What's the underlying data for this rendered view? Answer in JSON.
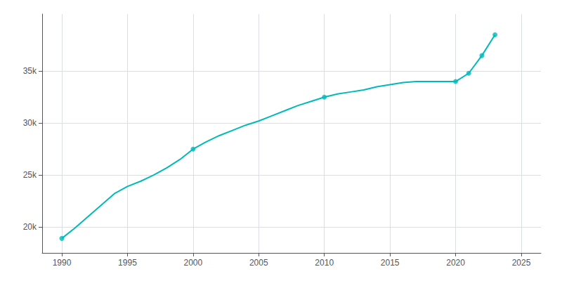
{
  "chart_data": {
    "type": "line",
    "series": [
      {
        "type": "line",
        "color": "#00BABA",
        "marker": "none",
        "x": [
          1990,
          1991,
          1992,
          1993,
          1994,
          1995,
          1996,
          1997,
          1998,
          1999,
          2000,
          2001,
          2002,
          2003,
          2004,
          2005,
          2006,
          2007,
          2008,
          2009,
          2010,
          2011,
          2012,
          2013,
          2014,
          2015,
          2016,
          2017,
          2018,
          2019,
          2020,
          2021,
          2022,
          2023
        ],
        "values": [
          18896,
          19900,
          21000,
          22100,
          23200,
          23900,
          24400,
          25000,
          25700,
          26500,
          27500,
          28200,
          28800,
          29300,
          29800,
          30200,
          30700,
          31200,
          31700,
          32100,
          32500,
          32800,
          33000,
          33200,
          33500,
          33700,
          33900,
          34000,
          34000,
          34000,
          34000,
          34800,
          36500,
          38500
        ]
      },
      {
        "type": "scatter",
        "color": "#00BABA",
        "marker": "circle",
        "x": [
          1990,
          2000,
          2010,
          2020,
          2021,
          2022,
          2023
        ],
        "values": [
          18896,
          27500,
          32500,
          34000,
          34800,
          36500,
          38500
        ]
      }
    ],
    "xlim": [
      1988.5,
      2026.5
    ],
    "xticks": [
      1990,
      1995,
      2000,
      2005,
      2010,
      2015,
      2020,
      2025
    ],
    "ylim": [
      17500,
      40500
    ],
    "yticks": [
      {
        "value": 20000,
        "label": "20k"
      },
      {
        "value": 25000,
        "label": "25k"
      },
      {
        "value": 30000,
        "label": "30k"
      },
      {
        "value": 35000,
        "label": "35k"
      }
    ],
    "grid": true
  }
}
